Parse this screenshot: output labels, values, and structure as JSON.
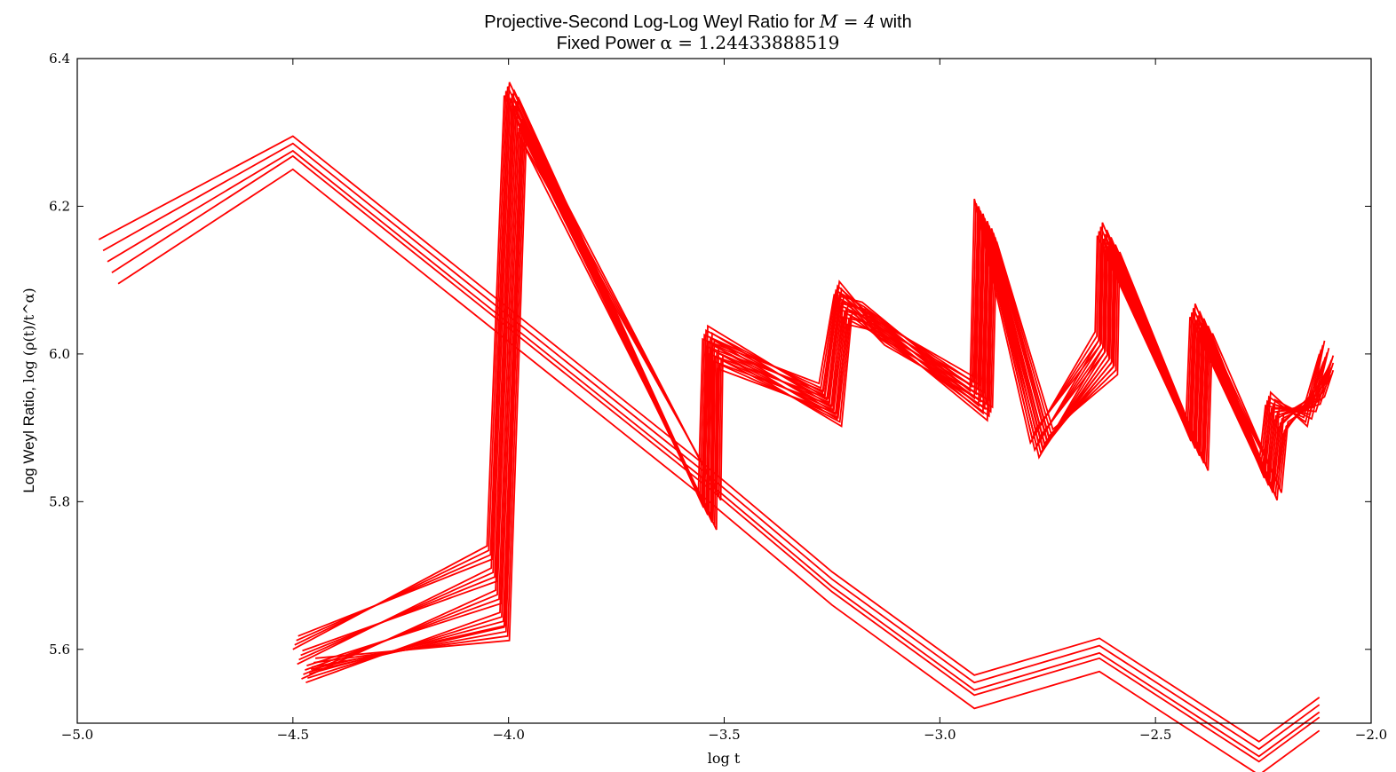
{
  "chart_data": {
    "type": "line",
    "title_line1": "Projective-Second Log-Log Weyl Ratio for",
    "title_line1_math": "M = 4",
    "title_line1_tail": "with",
    "title_line2": "Fixed Power",
    "title_line2_math": "α = 1.24433888519",
    "ylabel_text": "Log Weyl Ratio,",
    "ylabel_math": "log (ρ(t)/t^α)",
    "xlabel": "log t",
    "xlim": [
      -5.0,
      -2.0
    ],
    "ylim": [
      5.5,
      6.4
    ],
    "x_ticks": [
      -5.0,
      -4.5,
      -4.0,
      -3.5,
      -3.0,
      -2.5,
      -2.0
    ],
    "x_tick_labels": [
      "−5.0",
      "−4.5",
      "−4.0",
      "−3.5",
      "−3.0",
      "−2.5",
      "−2.0"
    ],
    "y_ticks": [
      5.6,
      5.8,
      6.0,
      6.2,
      6.4
    ],
    "y_tick_labels": [
      "5.6",
      "5.8",
      "6.0",
      "6.2",
      "6.4"
    ],
    "grid": false,
    "line_color": "#ff0000",
    "series_group_a": {
      "shared_x": [
        -4.5,
        -3.535,
        -3.25,
        -2.92,
        -2.63,
        -2.26,
        -2.12
      ],
      "curves": [
        {
          "x0": -4.95,
          "y0": 6.155,
          "peak": 6.295
        },
        {
          "x0": -4.94,
          "y0": 6.14,
          "peak": 6.285
        },
        {
          "x0": -4.93,
          "y0": 6.125,
          "peak": 6.275
        },
        {
          "x0": -4.92,
          "y0": 6.11,
          "peak": 6.268
        },
        {
          "x0": -4.905,
          "y0": 6.095,
          "peak": 6.25
        }
      ]
    },
    "series_group_b": {
      "curves": [
        {
          "x": [
            -4.5,
            -4.05,
            -4.01,
            -3.56,
            -3.55,
            -3.28,
            -3.245,
            -3.18,
            -2.93,
            -2.92,
            -2.79,
            -2.64,
            -2.635,
            -2.43,
            -2.42,
            -2.26,
            -2.245,
            -2.16,
            -2.12
          ],
          "y": [
            5.6,
            5.74,
            6.35,
            5.81,
            6.02,
            5.96,
            6.08,
            6.07,
            5.95,
            6.21,
            5.88,
            6.03,
            6.16,
            5.9,
            6.05,
            5.85,
            5.93,
            5.92,
            6.0
          ]
        },
        {
          "x": [
            -4.49,
            -4.04,
            -4.0,
            -3.55,
            -3.54,
            -3.27,
            -3.24,
            -3.17,
            -2.92,
            -2.91,
            -2.78,
            -2.63,
            -2.625,
            -2.42,
            -2.41,
            -2.25,
            -2.235,
            -2.15,
            -2.11
          ],
          "y": [
            5.58,
            5.71,
            6.34,
            5.8,
            6.01,
            5.95,
            6.07,
            6.06,
            5.94,
            6.2,
            5.87,
            6.02,
            6.15,
            5.89,
            6.04,
            5.84,
            5.92,
            5.93,
            5.99
          ]
        },
        {
          "x": [
            -4.48,
            -4.03,
            -3.99,
            -3.54,
            -3.535,
            -3.26,
            -3.235,
            -3.16,
            -2.91,
            -2.9,
            -2.77,
            -2.62,
            -2.615,
            -2.41,
            -2.4,
            -2.24,
            -2.225,
            -2.14,
            -2.1
          ],
          "y": [
            5.56,
            5.68,
            6.33,
            5.79,
            6.0,
            5.94,
            6.06,
            6.05,
            5.93,
            6.19,
            5.86,
            6.01,
            6.14,
            5.88,
            6.03,
            5.83,
            5.91,
            5.94,
            5.98
          ]
        },
        {
          "x": [
            -4.47,
            -4.02,
            -3.98,
            -3.53,
            -3.525,
            -3.25,
            -3.225,
            -3.15,
            -2.9,
            -2.89,
            -2.76,
            -2.61,
            -2.605,
            -2.4,
            -2.39,
            -2.23,
            -2.215,
            -2.13,
            -2.1
          ],
          "y": [
            5.555,
            5.65,
            6.3,
            5.78,
            5.99,
            5.93,
            6.05,
            6.04,
            5.92,
            6.18,
            5.87,
            6.0,
            6.13,
            5.87,
            6.02,
            5.82,
            5.9,
            5.95,
            5.97
          ]
        },
        {
          "x": [
            -4.46,
            -4.01,
            -3.97,
            -3.52,
            -3.515,
            -3.24,
            -3.215,
            -3.14,
            -2.89,
            -2.88,
            -2.75,
            -2.6,
            -2.595,
            -2.39,
            -2.38,
            -2.22,
            -2.205,
            -2.12,
            -2.1
          ],
          "y": [
            5.57,
            5.63,
            6.29,
            5.82,
            5.98,
            5.92,
            6.04,
            6.03,
            5.91,
            6.17,
            5.88,
            5.99,
            6.12,
            5.86,
            6.01,
            5.83,
            5.89,
            5.96,
            5.96
          ]
        }
      ]
    }
  }
}
